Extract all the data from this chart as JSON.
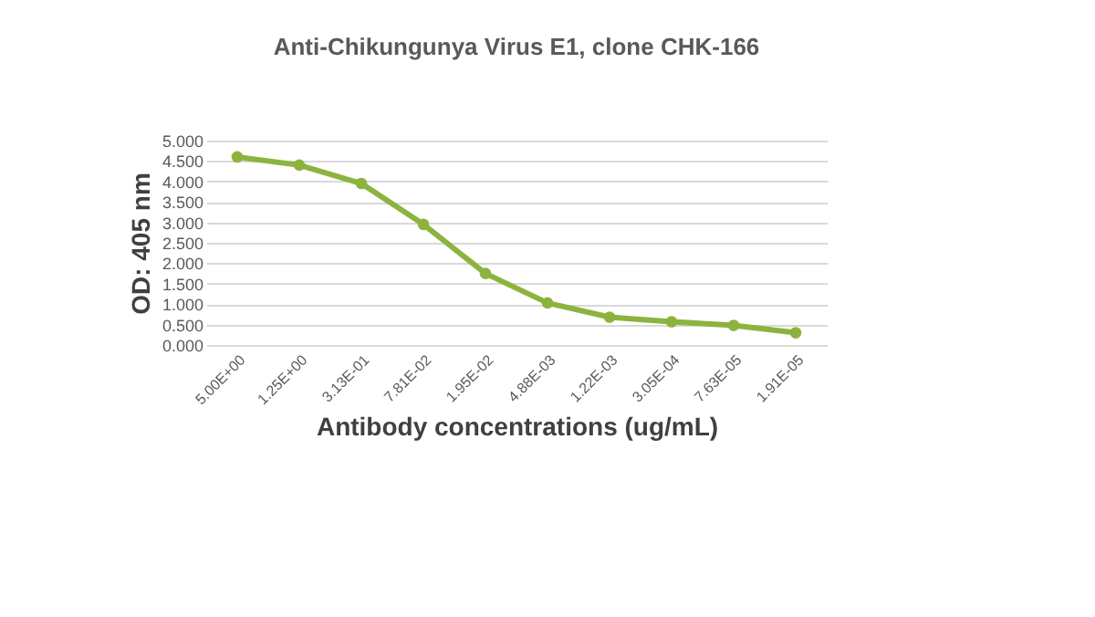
{
  "chart_data": {
    "type": "line",
    "title": "Anti-Chikungunya Virus E1, clone CHK-166",
    "xlabel": "Antibody concentrations (ug/mL)",
    "ylabel": "OD: 405 nm",
    "categories": [
      "5.00E+00",
      "1.25E+00",
      "3.13E-01",
      "7.81E-02",
      "1.95E-02",
      "4.88E-03",
      "1.22E-03",
      "3.05E-04",
      "7.63E-05",
      "1.91E-05"
    ],
    "series": [
      {
        "color": "#8db33f",
        "values": [
          4.6,
          4.4,
          3.95,
          2.95,
          1.75,
          1.03,
          0.68,
          0.57,
          0.48,
          0.3
        ]
      }
    ],
    "ylim": [
      0,
      5
    ],
    "yticks": [
      {
        "value": 0,
        "label": "0.000"
      },
      {
        "value": 0.5,
        "label": "0.500"
      },
      {
        "value": 1,
        "label": "1.000"
      },
      {
        "value": 1.5,
        "label": "1.500"
      },
      {
        "value": 2,
        "label": "2.000"
      },
      {
        "value": 2.5,
        "label": "2.500"
      },
      {
        "value": 3,
        "label": "3.000"
      },
      {
        "value": 3.5,
        "label": "3.500"
      },
      {
        "value": 4,
        "label": "4.000"
      },
      {
        "value": 4.5,
        "label": "4.500"
      },
      {
        "value": 5,
        "label": "5.000"
      }
    ],
    "grid": "y",
    "marker": "circle",
    "legend": false
  }
}
